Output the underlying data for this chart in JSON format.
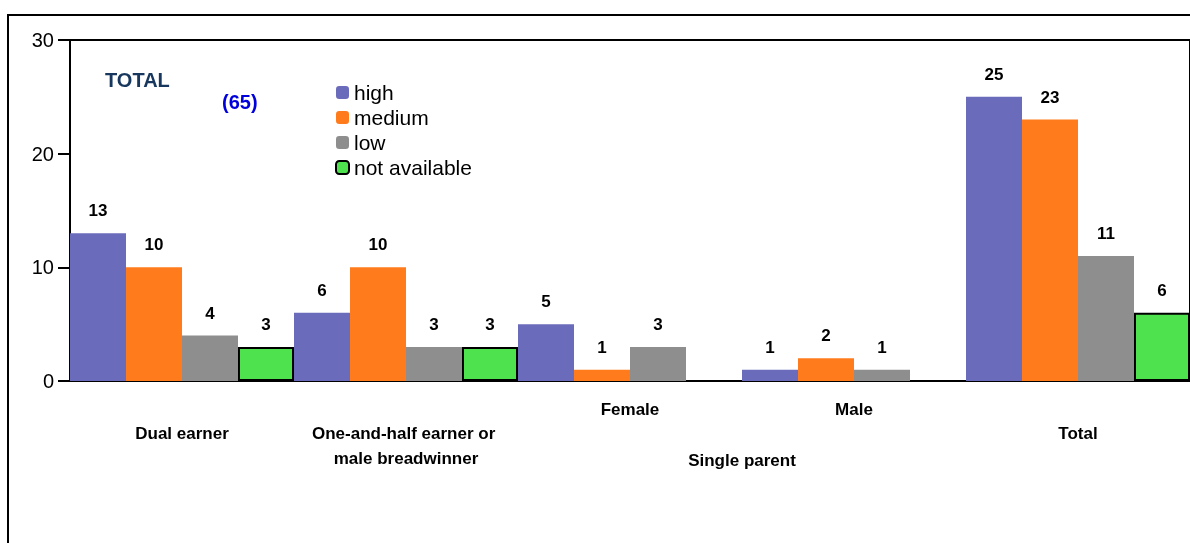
{
  "chart_data": {
    "type": "bar",
    "categories": [
      "Dual earner",
      "One-and-half earner or male breadwinner",
      "Female",
      "Male",
      "Total"
    ],
    "series": [
      {
        "name": "high",
        "color": "#6b6bbb",
        "values": [
          13,
          6,
          5,
          1,
          25
        ]
      },
      {
        "name": "medium",
        "color": "#ff7b1c",
        "values": [
          10,
          10,
          1,
          2,
          23
        ]
      },
      {
        "name": "low",
        "color": "#8e8e8e",
        "values": [
          4,
          3,
          3,
          1,
          11
        ]
      },
      {
        "name": "not available",
        "color": "#4fe24f",
        "values": [
          3,
          3,
          null,
          null,
          6
        ]
      }
    ],
    "ylim": [
      0,
      30
    ],
    "yticks": [
      0,
      10,
      20,
      30
    ],
    "grid": false,
    "legend": "top left",
    "data_labels": true,
    "annotations": [
      "TOTAL",
      "(65)",
      "Single parent"
    ]
  }
}
